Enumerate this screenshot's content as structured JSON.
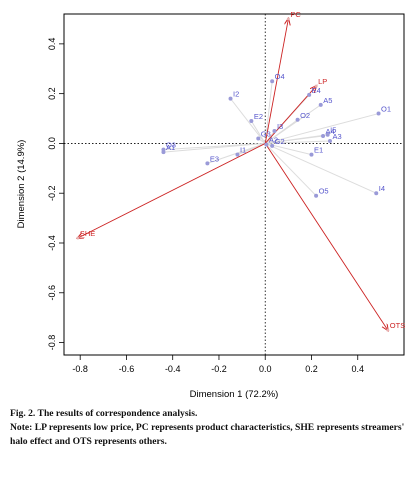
{
  "chart_data": {
    "type": "scatter",
    "xlabel": "Dimension 1 (72.2%)",
    "ylabel": "Dimension 2 (14.9%)",
    "xlim": [
      -0.87,
      0.6
    ],
    "ylim": [
      -0.85,
      0.52
    ],
    "xticks": [
      -0.8,
      -0.6,
      -0.4,
      -0.2,
      0.0,
      0.2,
      0.4
    ],
    "xtick_labels": [
      "-0.8",
      "-0.6",
      "-0.4",
      "-0.2",
      "0.0",
      "0.2",
      "0.4"
    ],
    "yticks": [
      -0.8,
      -0.6,
      -0.4,
      -0.2,
      0.0,
      0.2,
      0.4
    ],
    "ytick_labels": [
      "-0.8",
      "-0.6",
      "-0.4",
      "-0.2",
      "0.0",
      "0.2",
      "0.4"
    ],
    "reference_lines": {
      "x": 0,
      "y": 0
    },
    "grid": false,
    "series": [
      {
        "color": "#5555cc",
        "points": [
          {
            "label": "I2",
            "x": -0.15,
            "y": 0.18
          },
          {
            "label": "O4",
            "x": 0.03,
            "y": 0.25
          },
          {
            "label": "E4",
            "x": 0.19,
            "y": 0.195
          },
          {
            "label": "A5",
            "x": 0.24,
            "y": 0.155
          },
          {
            "label": "O1",
            "x": 0.49,
            "y": 0.12
          },
          {
            "label": "E2",
            "x": -0.06,
            "y": 0.09
          },
          {
            "label": "O2",
            "x": 0.14,
            "y": 0.095
          },
          {
            "label": "I3",
            "x": 0.04,
            "y": 0.05
          },
          {
            "label": "G3",
            "x": -0.03,
            "y": 0.02
          },
          {
            "label": "A4",
            "x": 0.25,
            "y": 0.03
          },
          {
            "label": "I5",
            "x": 0.27,
            "y": 0.035
          },
          {
            "label": "A3",
            "x": 0.28,
            "y": 0.01
          },
          {
            "label": "A2",
            "x": 0.005,
            "y": -0.005
          },
          {
            "label": "G2",
            "x": 0.03,
            "y": -0.01
          },
          {
            "label": "E1",
            "x": 0.2,
            "y": -0.045
          },
          {
            "label": "O3",
            "x": -0.44,
            "y": -0.025
          },
          {
            "label": "A1",
            "x": -0.44,
            "y": -0.035
          },
          {
            "label": "I1",
            "x": -0.12,
            "y": -0.045
          },
          {
            "label": "E3",
            "x": -0.25,
            "y": -0.08
          },
          {
            "label": "O5",
            "x": 0.22,
            "y": -0.21
          },
          {
            "label": "I4",
            "x": 0.48,
            "y": -0.2
          }
        ]
      }
    ],
    "vectors": [
      {
        "label": "PC",
        "x": 0.1,
        "y": 0.5,
        "color": "#cc2222"
      },
      {
        "label": "LP",
        "x": 0.22,
        "y": 0.23,
        "color": "#cc2222"
      },
      {
        "label": "SHE",
        "x": -0.81,
        "y": -0.38,
        "color": "#cc2222"
      },
      {
        "label": "OTS",
        "x": 0.53,
        "y": -0.75,
        "color": "#cc2222"
      }
    ]
  },
  "caption": {
    "title": "Fig. 2.  The results of correspondence analysis.",
    "note": "Note: LP represents low price, PC represents product characteristics, SHE represents streamers' halo effect and OTS represents others."
  }
}
